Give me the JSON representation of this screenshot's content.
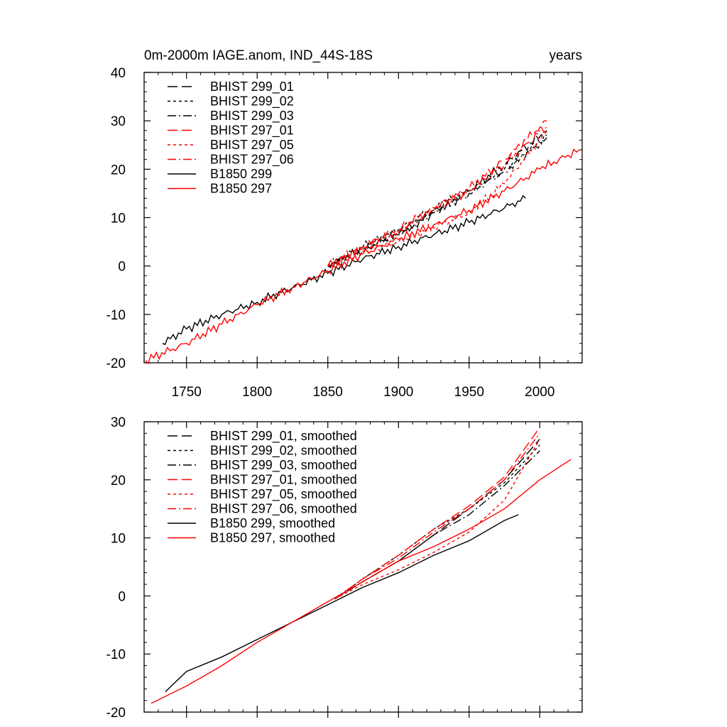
{
  "colors": {
    "black": "#000000",
    "red": "#ff0000"
  },
  "chart_data": [
    {
      "type": "line",
      "title": "0m-2000m IAGE.anom, IND_44S-18S",
      "units": "years",
      "xlim": [
        1720,
        2030
      ],
      "ylim": [
        -20,
        40
      ],
      "x_ticks": [
        1750,
        1800,
        1850,
        1900,
        1950,
        2000
      ],
      "y_ticks": [
        -20,
        -10,
        0,
        10,
        20,
        30,
        40
      ],
      "x_tick_labels": [
        "1750",
        "1800",
        "1850",
        "1900",
        "1950",
        "2000"
      ],
      "y_tick_labels": [
        "-20",
        "-10",
        "0",
        "10",
        "20",
        "30",
        "40"
      ],
      "legend_position": "top-left",
      "series": [
        {
          "name": "BHIST 299_01",
          "color": "#000000",
          "dash": "long-dash",
          "x": [
            1850,
            1875,
            1900,
            1925,
            1950,
            1975,
            2005
          ],
          "y": [
            0,
            3.5,
            6.5,
            11,
            15.5,
            21,
            28
          ]
        },
        {
          "name": "BHIST 299_02",
          "color": "#000000",
          "dash": "dot",
          "x": [
            1850,
            1875,
            1900,
            1925,
            1950,
            1975,
            2005
          ],
          "y": [
            0,
            4,
            7.5,
            12,
            15.5,
            20,
            27
          ]
        },
        {
          "name": "BHIST 299_03",
          "color": "#000000",
          "dash": "dash-dot",
          "x": [
            1850,
            1875,
            1900,
            1925,
            1950,
            1975,
            2005
          ],
          "y": [
            0,
            3.5,
            6.5,
            11,
            15,
            19.5,
            26.5
          ]
        },
        {
          "name": "BHIST 297_01",
          "color": "#ff0000",
          "dash": "long-dash",
          "x": [
            1850,
            1875,
            1900,
            1925,
            1950,
            1975,
            2005
          ],
          "y": [
            0,
            4,
            7.5,
            12,
            16,
            22,
            30
          ]
        },
        {
          "name": "BHIST 297_05",
          "color": "#ff0000",
          "dash": "dot",
          "x": [
            1850,
            1875,
            1900,
            1925,
            1950,
            1975,
            2005
          ],
          "y": [
            0,
            3,
            5,
            8,
            11,
            17,
            28
          ]
        },
        {
          "name": "BHIST 297_06",
          "color": "#ff0000",
          "dash": "dash-dot",
          "x": [
            1850,
            1875,
            1900,
            1925,
            1950,
            1975,
            2005
          ],
          "y": [
            0,
            4,
            7,
            11.5,
            15.5,
            21,
            29
          ]
        },
        {
          "name": "B1850 299",
          "color": "#000000",
          "dash": "solid",
          "x": [
            1733,
            1750,
            1775,
            1800,
            1825,
            1850,
            1875,
            1900,
            1925,
            1950,
            1975,
            1990
          ],
          "y": [
            -16,
            -13,
            -10,
            -7.5,
            -4.5,
            -1.5,
            1.5,
            4,
            6.5,
            9,
            12,
            14
          ]
        },
        {
          "name": "B1850 297",
          "color": "#ff0000",
          "dash": "solid",
          "x": [
            1721,
            1750,
            1775,
            1800,
            1825,
            1850,
            1875,
            1900,
            1925,
            1950,
            1975,
            2000,
            2028
          ],
          "y": [
            -19.5,
            -16,
            -12,
            -8,
            -4.5,
            -1,
            2.5,
            5.5,
            8.5,
            11.5,
            15.5,
            20,
            24
          ]
        }
      ]
    },
    {
      "type": "line",
      "xlim": [
        1720,
        2030
      ],
      "ylim": [
        -20,
        30
      ],
      "x_ticks": [
        1750,
        1800,
        1850,
        1900,
        1950,
        2000
      ],
      "y_ticks": [
        -20,
        -10,
        0,
        10,
        20,
        30
      ],
      "y_tick_labels": [
        "-20",
        "-10",
        "0",
        "10",
        "20",
        "30"
      ],
      "legend_position": "top-left",
      "series": [
        {
          "name": "BHIST 299_01, smoothed",
          "color": "#000000",
          "dash": "long-dash",
          "x": [
            1855,
            1875,
            1900,
            1925,
            1950,
            1975,
            2000
          ],
          "y": [
            -0.5,
            2.5,
            6,
            10.5,
            15,
            20,
            27
          ]
        },
        {
          "name": "BHIST 299_02, smoothed",
          "color": "#000000",
          "dash": "dot",
          "x": [
            1855,
            1875,
            1900,
            1925,
            1950,
            1975,
            2000
          ],
          "y": [
            -0.5,
            3,
            7,
            11.5,
            15,
            19.5,
            26
          ]
        },
        {
          "name": "BHIST 299_03, smoothed",
          "color": "#000000",
          "dash": "dash-dot",
          "x": [
            1855,
            1875,
            1900,
            1925,
            1950,
            1975,
            2000
          ],
          "y": [
            -0.5,
            2.5,
            6,
            10.5,
            14,
            19,
            25
          ]
        },
        {
          "name": "BHIST 297_01, smoothed",
          "color": "#ff0000",
          "dash": "long-dash",
          "x": [
            1855,
            1875,
            1900,
            1925,
            1950,
            1975,
            2000
          ],
          "y": [
            -0.5,
            3,
            7,
            11.5,
            15.5,
            20.5,
            29
          ]
        },
        {
          "name": "BHIST 297_05, smoothed",
          "color": "#ff0000",
          "dash": "dot",
          "x": [
            1855,
            1875,
            1900,
            1925,
            1950,
            1975,
            2000
          ],
          "y": [
            -0.5,
            2,
            4.5,
            7.5,
            11,
            16.5,
            27
          ]
        },
        {
          "name": "BHIST 297_06, smoothed",
          "color": "#ff0000",
          "dash": "dash-dot",
          "x": [
            1855,
            1875,
            1900,
            1925,
            1950,
            1975,
            2000
          ],
          "y": [
            -0.5,
            3,
            6.5,
            11,
            15,
            20,
            28
          ]
        },
        {
          "name": "B1850 299, smoothed",
          "color": "#000000",
          "dash": "solid",
          "x": [
            1735,
            1750,
            1775,
            1800,
            1825,
            1850,
            1875,
            1900,
            1925,
            1950,
            1975,
            1985
          ],
          "y": [
            -16.5,
            -13,
            -10.5,
            -7.5,
            -4.5,
            -1.5,
            1.5,
            4,
            7,
            9.5,
            13,
            14
          ]
        },
        {
          "name": "B1850 297, smoothed",
          "color": "#ff0000",
          "dash": "solid",
          "x": [
            1725,
            1750,
            1775,
            1800,
            1825,
            1850,
            1875,
            1900,
            1925,
            1950,
            1975,
            2000,
            2022
          ],
          "y": [
            -18.5,
            -15.5,
            -12,
            -8,
            -4.5,
            -1,
            2.5,
            6,
            8.5,
            11.5,
            15,
            20,
            23.5
          ]
        }
      ]
    }
  ]
}
